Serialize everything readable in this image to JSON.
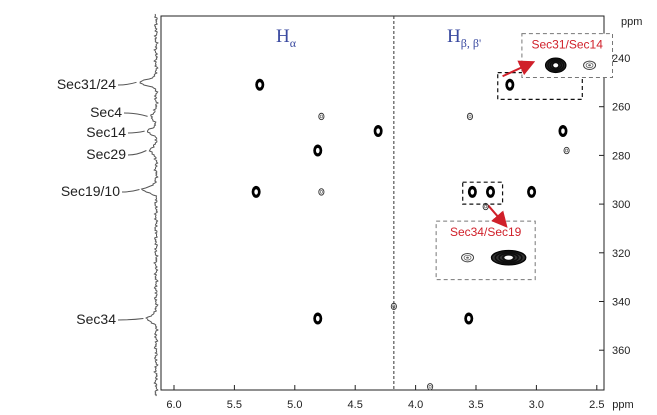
{
  "chart_data": {
    "type": "scatter",
    "subtype": "2D NMR contour spectrum",
    "x_unit": "ppm",
    "y_unit": "ppm",
    "xlim": [
      6.15,
      2.25
    ],
    "ylim": [
      228,
      376
    ],
    "x_ticks": [
      "6.0",
      "5.5",
      "5.0",
      "4.5",
      "4.0",
      "3.5",
      "3.0",
      "2.5"
    ],
    "y_ticks": [
      "240",
      "260",
      "280",
      "300",
      "320",
      "340",
      "360"
    ],
    "region_labels": [
      {
        "main": "H",
        "sub": "α"
      },
      {
        "main": "H",
        "sub": "β, β'"
      }
    ],
    "divider_x": 4.18,
    "projection_labels": [
      "Sec31/24",
      "Sec4",
      "Sec14",
      "Sec29",
      "Sec19/10",
      "Sec34"
    ],
    "projection_peaks": [
      {
        "y": 250,
        "amp": 0.55
      },
      {
        "y": 264,
        "amp": 0.18
      },
      {
        "y": 270,
        "amp": 0.28
      },
      {
        "y": 278,
        "amp": 0.22
      },
      {
        "y": 294,
        "amp": 0.45
      },
      {
        "y": 347,
        "amp": 0.32
      }
    ],
    "peaks": [
      {
        "x": 5.29,
        "y": 251,
        "strength": "strong"
      },
      {
        "x": 4.78,
        "y": 264,
        "strength": "weak"
      },
      {
        "x": 4.31,
        "y": 270,
        "strength": "strong"
      },
      {
        "x": 4.81,
        "y": 278,
        "strength": "strong"
      },
      {
        "x": 5.32,
        "y": 295,
        "strength": "strong"
      },
      {
        "x": 4.78,
        "y": 295,
        "strength": "weak"
      },
      {
        "x": 4.81,
        "y": 347,
        "strength": "strong"
      },
      {
        "x": 3.56,
        "y": 347,
        "strength": "strong"
      },
      {
        "x": 4.18,
        "y": 342,
        "strength": "weak"
      },
      {
        "x": 3.88,
        "y": 375,
        "strength": "weak"
      },
      {
        "x": 3.22,
        "y": 251,
        "strength": "strong"
      },
      {
        "x": 3.55,
        "y": 264,
        "strength": "weak"
      },
      {
        "x": 2.78,
        "y": 270,
        "strength": "strong"
      },
      {
        "x": 2.75,
        "y": 278,
        "strength": "weak"
      },
      {
        "x": 3.53,
        "y": 295,
        "strength": "strong"
      },
      {
        "x": 3.38,
        "y": 295,
        "strength": "strong"
      },
      {
        "x": 3.04,
        "y": 295,
        "strength": "strong"
      },
      {
        "x": 3.42,
        "y": 301,
        "strength": "weak"
      }
    ],
    "highlight_boxes": [
      {
        "x": [
          3.32,
          2.62
        ],
        "y": [
          246,
          257
        ]
      },
      {
        "x": [
          3.61,
          3.28
        ],
        "y": [
          291,
          300
        ]
      }
    ],
    "insets": [
      {
        "title": "Sec31/Sec14",
        "x": [
          3.12,
          2.37
        ],
        "y": [
          230,
          248
        ],
        "peaks": [
          {
            "x": 2.84,
            "y": 243,
            "strength": "strong"
          },
          {
            "x": 2.56,
            "y": 243,
            "strength": "weak"
          }
        ]
      },
      {
        "title": "Sec34/Sec19",
        "x": [
          3.83,
          3.01
        ],
        "y": [
          307,
          331
        ],
        "peaks": [
          {
            "x": 3.57,
            "y": 322,
            "strength": "weak"
          },
          {
            "x": 3.23,
            "y": 322,
            "strength": "strong"
          }
        ]
      }
    ],
    "arrows": [
      {
        "from": [
          3.28,
          247.5
        ],
        "to": [
          3.04,
          242
        ]
      },
      {
        "from": [
          3.4,
          300.5
        ],
        "to": [
          3.26,
          308.5
        ]
      }
    ]
  }
}
